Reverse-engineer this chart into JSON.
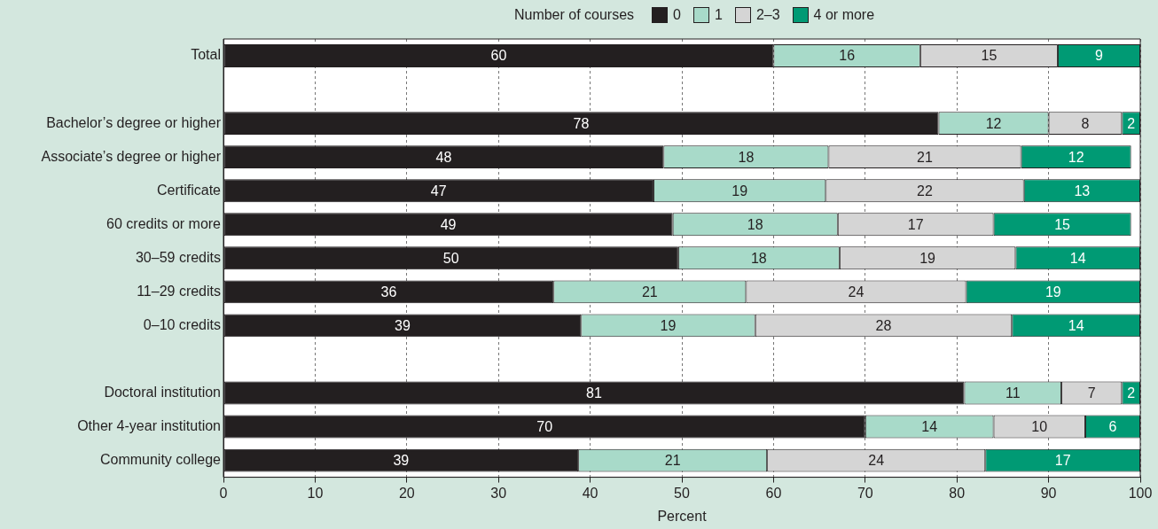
{
  "chart_data": {
    "type": "bar",
    "orientation": "horizontal",
    "stacked": true,
    "xlabel": "Percent",
    "legend_title": "Number of courses",
    "legend": "top",
    "categories": [
      "Total",
      null,
      "Bachelor’s degree or higher",
      "Associate’s degree or higher",
      "Certificate",
      "60 credits or more",
      "30–59 credits",
      "11–29 credits",
      "0–10 credits",
      null,
      "Doctoral institution",
      "Other 4-year institution",
      "Community college"
    ],
    "series": [
      {
        "name": "0",
        "color": "#231f20",
        "values": [
          60,
          null,
          78,
          48,
          46.9,
          49,
          49.6,
          36,
          39,
          null,
          80.8,
          70,
          38.7
        ],
        "value_labels": [
          "60",
          null,
          "78",
          "48",
          "47",
          "49",
          "50",
          "36",
          "39",
          null,
          "81",
          "70",
          "39"
        ]
      },
      {
        "name": "1",
        "color": "#a8dac9",
        "values": [
          16,
          null,
          12,
          18,
          18.8,
          18,
          17.6,
          21,
          19,
          null,
          10.6,
          14,
          20.6
        ],
        "value_labels": [
          "16",
          null,
          "12",
          "18",
          "19",
          "18",
          "18",
          "21",
          "19",
          null,
          "11",
          "14",
          "21"
        ]
      },
      {
        "name": "2–3",
        "color": "#d5d5d5",
        "values": [
          15,
          null,
          8,
          21,
          21.6,
          17,
          19.2,
          24,
          28,
          null,
          6.6,
          10,
          23.8
        ],
        "value_labels": [
          "15",
          null,
          "8",
          "21",
          "22",
          "17",
          "19",
          "24",
          "28",
          null,
          "7",
          "10",
          "24"
        ]
      },
      {
        "name": "4 or more",
        "color": "#009a74",
        "values": [
          9,
          null,
          2,
          12,
          12.7,
          15,
          13.6,
          19,
          14,
          null,
          2,
          6,
          16.9
        ],
        "value_labels": [
          "9",
          null,
          "2",
          "12",
          "13",
          "15",
          "14",
          "19",
          "14",
          null,
          "2",
          "6",
          "17"
        ]
      }
    ],
    "xlim": [
      0,
      100
    ],
    "xticks": [
      0,
      10,
      20,
      30,
      40,
      50,
      60,
      70,
      80,
      90,
      100
    ],
    "grid": "x"
  }
}
